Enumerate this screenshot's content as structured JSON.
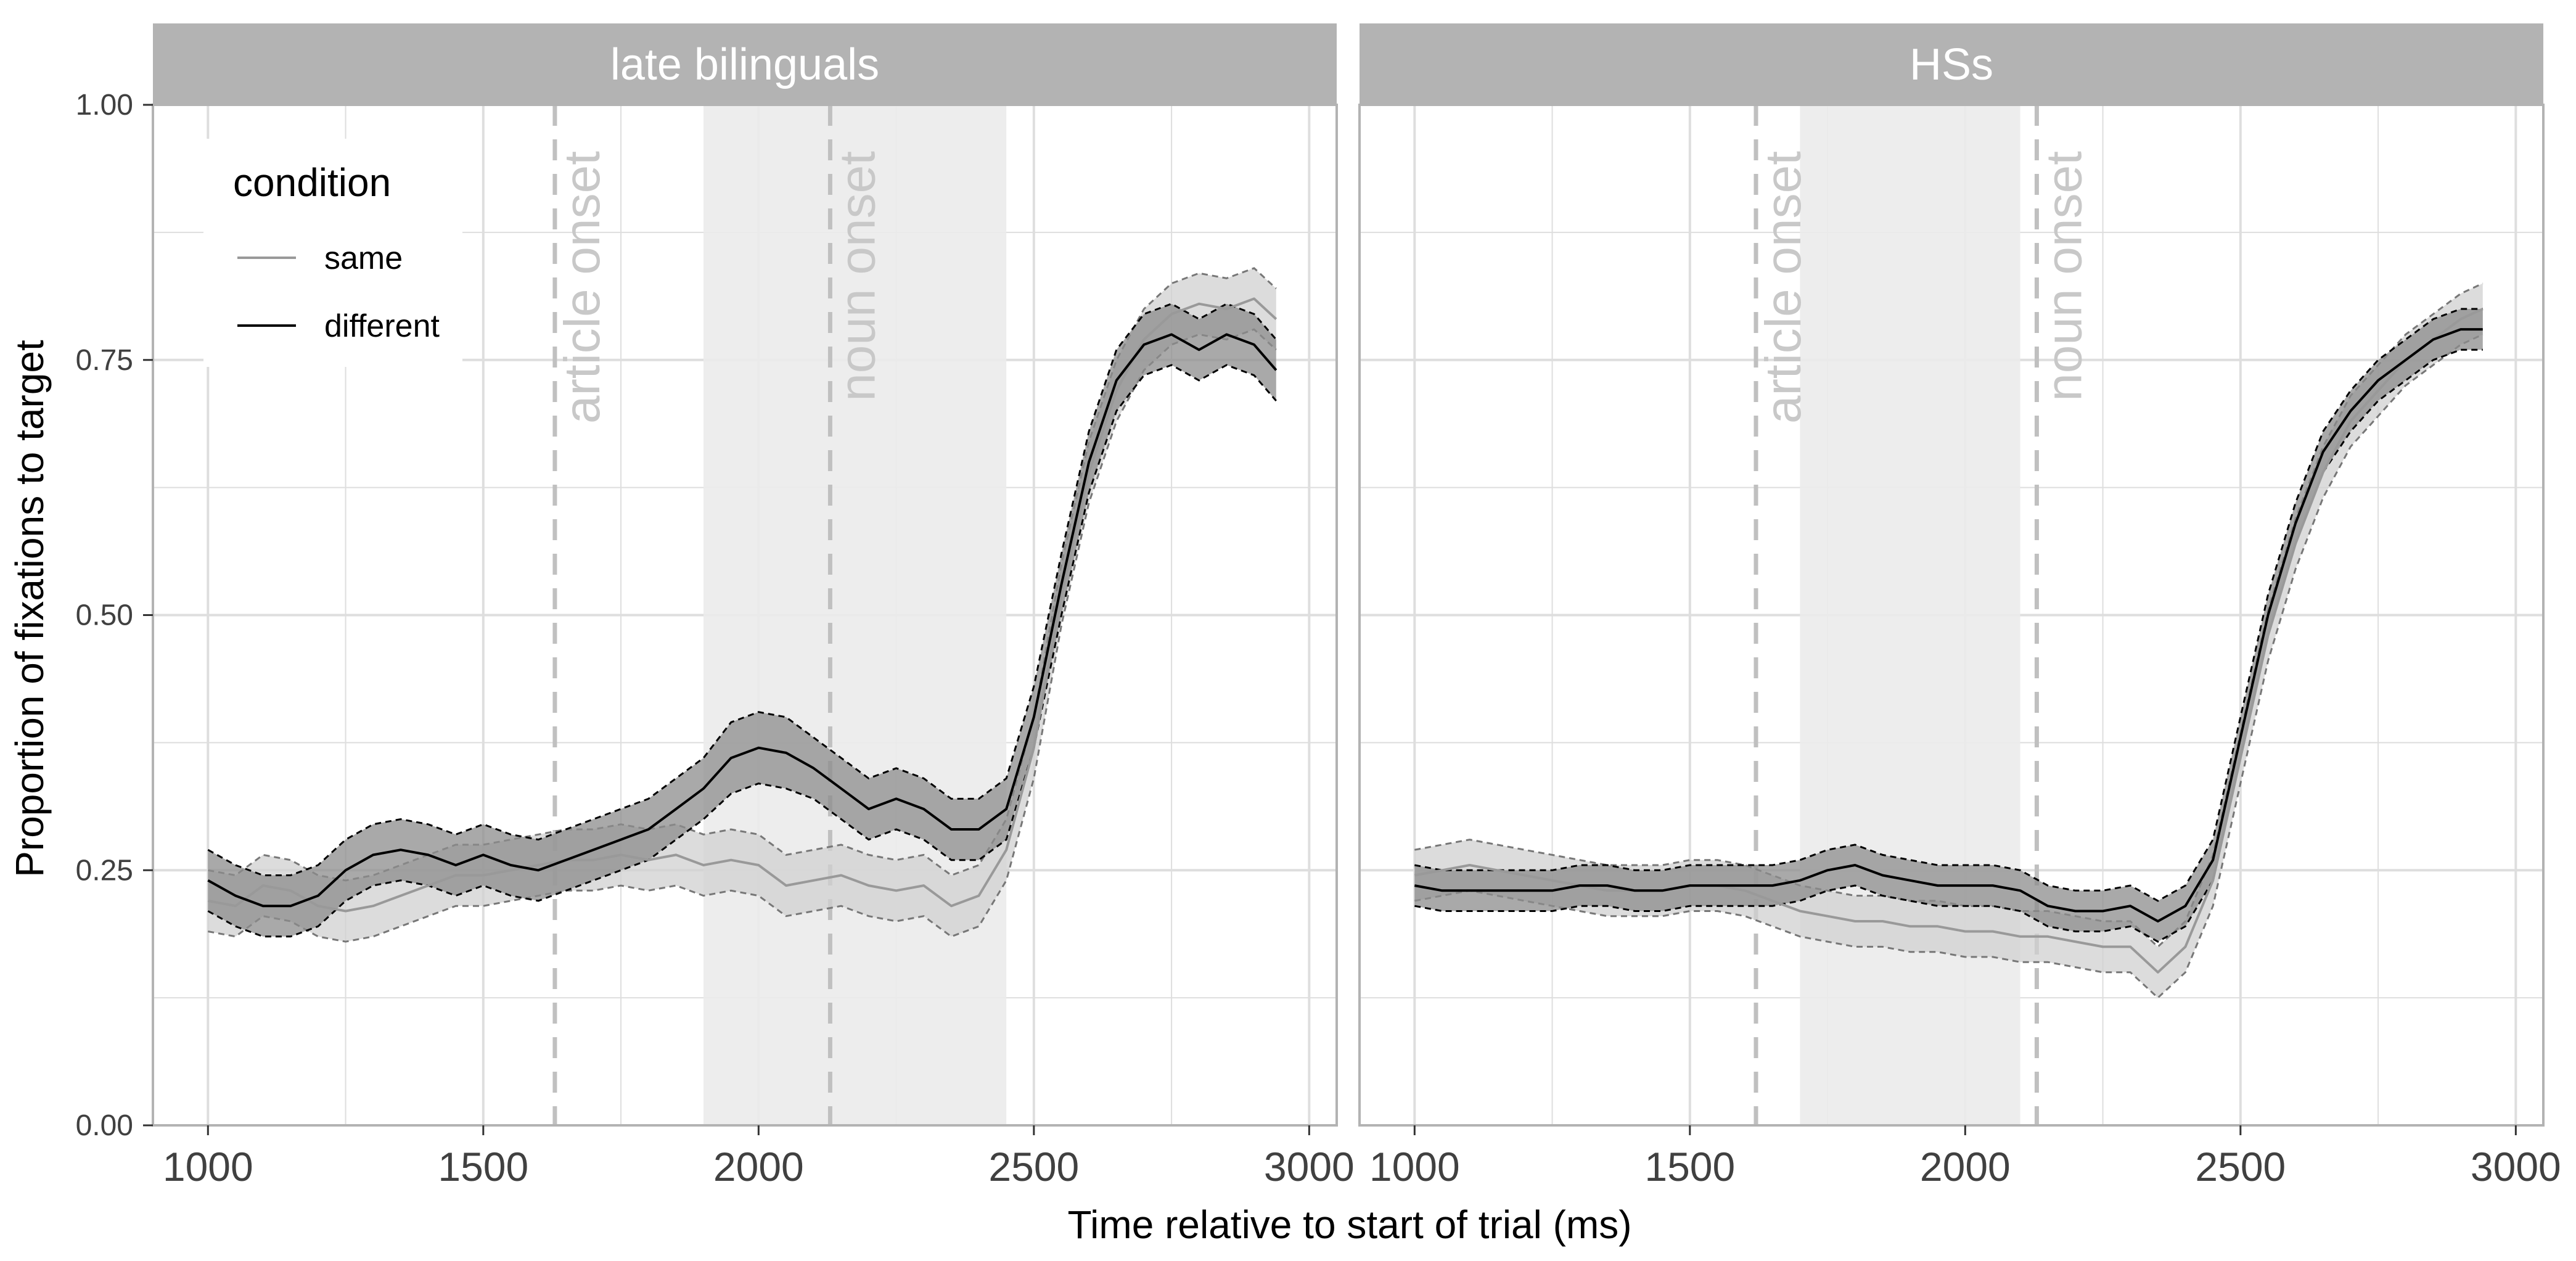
{
  "chart_data": {
    "type": "line",
    "xlabel": "Time relative to start of trial (ms)",
    "ylabel": "Proportion of fixations to target",
    "xlim": [
      900,
      3050
    ],
    "ylim": [
      0,
      1
    ],
    "x_ticks": [
      1000,
      1500,
      2000,
      2500,
      3000
    ],
    "x_tick_labels": [
      "1000",
      "1500",
      "2000",
      "2500",
      "3000"
    ],
    "y_ticks": [
      0,
      0.25,
      0.5,
      0.75,
      1
    ],
    "y_tick_labels": [
      "0.00",
      "0.25",
      "0.50",
      "0.75",
      "1.00"
    ],
    "grid": true,
    "legend": {
      "title": "condition",
      "position": "top-left",
      "entries": [
        {
          "name": "same",
          "color": "#999999"
        },
        {
          "name": "different",
          "color": "#000000"
        }
      ]
    },
    "colors": {
      "same_line": "#999999",
      "same_ribbon": "#d0d0d0",
      "different_line": "#000000",
      "different_ribbon": "#8c8c8c",
      "strip": "#b3b3b3",
      "shade": "#ebebeb",
      "vline": "#c0c0c0",
      "annotation": "#c8c8c8",
      "grid": "#dedede",
      "panel_border": "#b3b3b3"
    },
    "panels": [
      {
        "label": "late bilinguals",
        "shade_range": [
          1900,
          2450
        ],
        "vlines": [
          {
            "x": 1630,
            "label": "article onset"
          },
          {
            "x": 2130,
            "label": "noun onset"
          }
        ],
        "series": [
          {
            "name": "same",
            "x": [
              1000,
              1050,
              1100,
              1150,
              1200,
              1250,
              1300,
              1350,
              1400,
              1450,
              1500,
              1550,
              1600,
              1650,
              1700,
              1750,
              1800,
              1850,
              1900,
              1950,
              2000,
              2050,
              2100,
              2150,
              2200,
              2250,
              2300,
              2350,
              2400,
              2450,
              2500,
              2550,
              2600,
              2650,
              2700,
              2750,
              2800,
              2850,
              2900,
              2940
            ],
            "y": [
              0.22,
              0.215,
              0.235,
              0.23,
              0.215,
              0.21,
              0.215,
              0.225,
              0.235,
              0.245,
              0.245,
              0.25,
              0.255,
              0.26,
              0.26,
              0.265,
              0.26,
              0.265,
              0.255,
              0.26,
              0.255,
              0.235,
              0.24,
              0.245,
              0.235,
              0.23,
              0.235,
              0.215,
              0.225,
              0.27,
              0.37,
              0.52,
              0.64,
              0.72,
              0.77,
              0.795,
              0.805,
              0.8,
              0.81,
              0.79
            ],
            "se": [
              0.03,
              0.03,
              0.03,
              0.03,
              0.03,
              0.03,
              0.03,
              0.03,
              0.03,
              0.03,
              0.03,
              0.03,
              0.03,
              0.03,
              0.03,
              0.03,
              0.03,
              0.03,
              0.03,
              0.03,
              0.03,
              0.03,
              0.03,
              0.03,
              0.03,
              0.03,
              0.03,
              0.03,
              0.03,
              0.03,
              0.03,
              0.03,
              0.03,
              0.03,
              0.03,
              0.03,
              0.03,
              0.03,
              0.03,
              0.03
            ]
          },
          {
            "name": "different",
            "x": [
              1000,
              1050,
              1100,
              1150,
              1200,
              1250,
              1300,
              1350,
              1400,
              1450,
              1500,
              1550,
              1600,
              1650,
              1700,
              1750,
              1800,
              1850,
              1900,
              1950,
              2000,
              2050,
              2100,
              2150,
              2200,
              2250,
              2300,
              2350,
              2400,
              2450,
              2500,
              2550,
              2600,
              2650,
              2700,
              2750,
              2800,
              2850,
              2900,
              2940
            ],
            "y": [
              0.24,
              0.225,
              0.215,
              0.215,
              0.225,
              0.25,
              0.265,
              0.27,
              0.265,
              0.255,
              0.265,
              0.255,
              0.25,
              0.26,
              0.27,
              0.28,
              0.29,
              0.31,
              0.33,
              0.36,
              0.37,
              0.365,
              0.35,
              0.33,
              0.31,
              0.32,
              0.31,
              0.29,
              0.29,
              0.31,
              0.4,
              0.53,
              0.65,
              0.73,
              0.765,
              0.775,
              0.76,
              0.775,
              0.765,
              0.74
            ],
            "se": [
              0.03,
              0.03,
              0.03,
              0.03,
              0.03,
              0.03,
              0.03,
              0.03,
              0.03,
              0.03,
              0.03,
              0.03,
              0.03,
              0.03,
              0.03,
              0.03,
              0.03,
              0.03,
              0.03,
              0.035,
              0.035,
              0.035,
              0.03,
              0.03,
              0.03,
              0.03,
              0.03,
              0.03,
              0.03,
              0.03,
              0.03,
              0.03,
              0.03,
              0.03,
              0.03,
              0.03,
              0.03,
              0.03,
              0.03,
              0.03
            ]
          }
        ]
      },
      {
        "label": "HSs",
        "shade_range": [
          1700,
          2100
        ],
        "vlines": [
          {
            "x": 1620,
            "label": "article onset"
          },
          {
            "x": 2130,
            "label": "noun onset"
          }
        ],
        "series": [
          {
            "name": "same",
            "x": [
              1000,
              1050,
              1100,
              1150,
              1200,
              1250,
              1300,
              1350,
              1400,
              1450,
              1500,
              1550,
              1600,
              1650,
              1700,
              1750,
              1800,
              1850,
              1900,
              1950,
              2000,
              2050,
              2100,
              2150,
              2200,
              2250,
              2300,
              2350,
              2400,
              2450,
              2500,
              2550,
              2600,
              2650,
              2700,
              2750,
              2800,
              2850,
              2900,
              2940
            ],
            "y": [
              0.245,
              0.25,
              0.255,
              0.25,
              0.245,
              0.24,
              0.235,
              0.23,
              0.23,
              0.23,
              0.235,
              0.235,
              0.23,
              0.22,
              0.21,
              0.205,
              0.2,
              0.2,
              0.195,
              0.195,
              0.19,
              0.19,
              0.185,
              0.185,
              0.18,
              0.175,
              0.175,
              0.15,
              0.175,
              0.24,
              0.36,
              0.48,
              0.57,
              0.64,
              0.69,
              0.72,
              0.75,
              0.77,
              0.79,
              0.8
            ],
            "se": [
              0.025,
              0.025,
              0.025,
              0.025,
              0.025,
              0.025,
              0.025,
              0.025,
              0.025,
              0.025,
              0.025,
              0.025,
              0.025,
              0.025,
              0.025,
              0.025,
              0.025,
              0.025,
              0.025,
              0.025,
              0.025,
              0.025,
              0.025,
              0.025,
              0.025,
              0.025,
              0.025,
              0.025,
              0.025,
              0.025,
              0.025,
              0.025,
              0.025,
              0.025,
              0.025,
              0.025,
              0.025,
              0.025,
              0.025,
              0.025
            ]
          },
          {
            "name": "different",
            "x": [
              1000,
              1050,
              1100,
              1150,
              1200,
              1250,
              1300,
              1350,
              1400,
              1450,
              1500,
              1550,
              1600,
              1650,
              1700,
              1750,
              1800,
              1850,
              1900,
              1950,
              2000,
              2050,
              2100,
              2150,
              2200,
              2250,
              2300,
              2350,
              2400,
              2450,
              2500,
              2550,
              2600,
              2650,
              2700,
              2750,
              2800,
              2850,
              2900,
              2940
            ],
            "y": [
              0.235,
              0.23,
              0.23,
              0.23,
              0.23,
              0.23,
              0.235,
              0.235,
              0.23,
              0.23,
              0.235,
              0.235,
              0.235,
              0.235,
              0.24,
              0.25,
              0.255,
              0.245,
              0.24,
              0.235,
              0.235,
              0.235,
              0.23,
              0.215,
              0.21,
              0.21,
              0.215,
              0.2,
              0.215,
              0.26,
              0.38,
              0.5,
              0.59,
              0.66,
              0.7,
              0.73,
              0.75,
              0.77,
              0.78,
              0.78
            ],
            "se": [
              0.02,
              0.02,
              0.02,
              0.02,
              0.02,
              0.02,
              0.02,
              0.02,
              0.02,
              0.02,
              0.02,
              0.02,
              0.02,
              0.02,
              0.02,
              0.02,
              0.02,
              0.02,
              0.02,
              0.02,
              0.02,
              0.02,
              0.02,
              0.02,
              0.02,
              0.02,
              0.02,
              0.02,
              0.02,
              0.02,
              0.02,
              0.02,
              0.02,
              0.02,
              0.02,
              0.02,
              0.02,
              0.02,
              0.02,
              0.02
            ]
          }
        ]
      }
    ]
  }
}
